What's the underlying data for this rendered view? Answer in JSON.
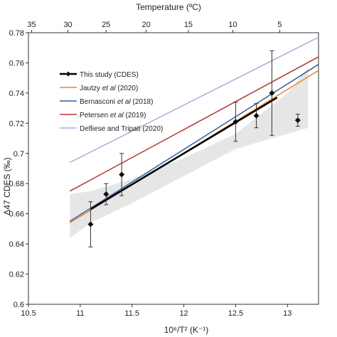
{
  "chart_data": {
    "type": "line",
    "title": "",
    "xlabel": "10⁶/T² (K⁻¹)",
    "ylabel": "Δ47 CDES (‰)",
    "top_axis_label": "Temperature (ºC)",
    "xlim": [
      10.5,
      13.3
    ],
    "ylim": [
      0.6,
      0.78
    ],
    "x_ticks": [
      10.5,
      11,
      11.5,
      12,
      12.5,
      13
    ],
    "x_tick_labels": [
      "10.5",
      "11",
      "11.5",
      "12",
      "12.5",
      "13"
    ],
    "y_ticks": [
      0.6,
      0.62,
      0.64,
      0.66,
      0.68,
      0.7,
      0.72,
      0.74,
      0.76,
      0.78
    ],
    "y_tick_labels": [
      "0.6",
      "0.62",
      "0.64",
      "0.66",
      "0.68",
      "0.7",
      "0.72",
      "0.74",
      "0.76",
      "0.78"
    ],
    "top_ticks": [
      35,
      30,
      25,
      20,
      15,
      10,
      5
    ],
    "top_tick_labels": [
      "35",
      "30",
      "25",
      "20",
      "15",
      "10",
      "5"
    ],
    "data_points": [
      {
        "x": 11.1,
        "y": 0.653,
        "err": 0.015
      },
      {
        "x": 11.25,
        "y": 0.673,
        "err": 0.007
      },
      {
        "x": 11.4,
        "y": 0.686,
        "err": 0.014
      },
      {
        "x": 12.5,
        "y": 0.721,
        "err": 0.013
      },
      {
        "x": 12.7,
        "y": 0.725,
        "err": 0.008
      },
      {
        "x": 12.85,
        "y": 0.74,
        "err": 0.028
      },
      {
        "x": 13.1,
        "y": 0.722,
        "err": 0.004
      }
    ],
    "confidence_band": {
      "upper": [
        [
          10.9,
          0.673
        ],
        [
          11.1,
          0.675
        ],
        [
          11.5,
          0.683
        ],
        [
          12.0,
          0.697
        ],
        [
          12.5,
          0.713
        ],
        [
          13.0,
          0.74
        ],
        [
          13.2,
          0.757
        ]
      ],
      "lower": [
        [
          10.9,
          0.644
        ],
        [
          11.1,
          0.654
        ],
        [
          11.5,
          0.667
        ],
        [
          12.0,
          0.685
        ],
        [
          12.5,
          0.703
        ],
        [
          13.0,
          0.713
        ],
        [
          13.2,
          0.717
        ]
      ]
    },
    "series": [
      {
        "name": "This study (CDES)",
        "color": "#000000",
        "marker": "diamond",
        "x": [
          11.1,
          12.9
        ],
        "y": [
          0.663,
          0.737
        ]
      },
      {
        "name": "Jautzy et al (2020)",
        "color": "#e8882e",
        "x": [
          10.9,
          13.3
        ],
        "y": [
          0.654,
          0.755
        ]
      },
      {
        "name": "Bernasconi et al (2018)",
        "color": "#2f5f9e",
        "x": [
          10.9,
          13.3
        ],
        "y": [
          0.655,
          0.759
        ]
      },
      {
        "name": "Petersen et al (2019)",
        "color": "#b03535",
        "x": [
          10.9,
          13.3
        ],
        "y": [
          0.675,
          0.764
        ]
      },
      {
        "name": "Defliese and Tripati (2020)",
        "color": "#9fb2d6",
        "x": [
          10.9,
          13.3
        ],
        "y": [
          0.694,
          0.777
        ]
      }
    ],
    "legend_placement": "top-left",
    "band_color": "#e6e6e6"
  }
}
